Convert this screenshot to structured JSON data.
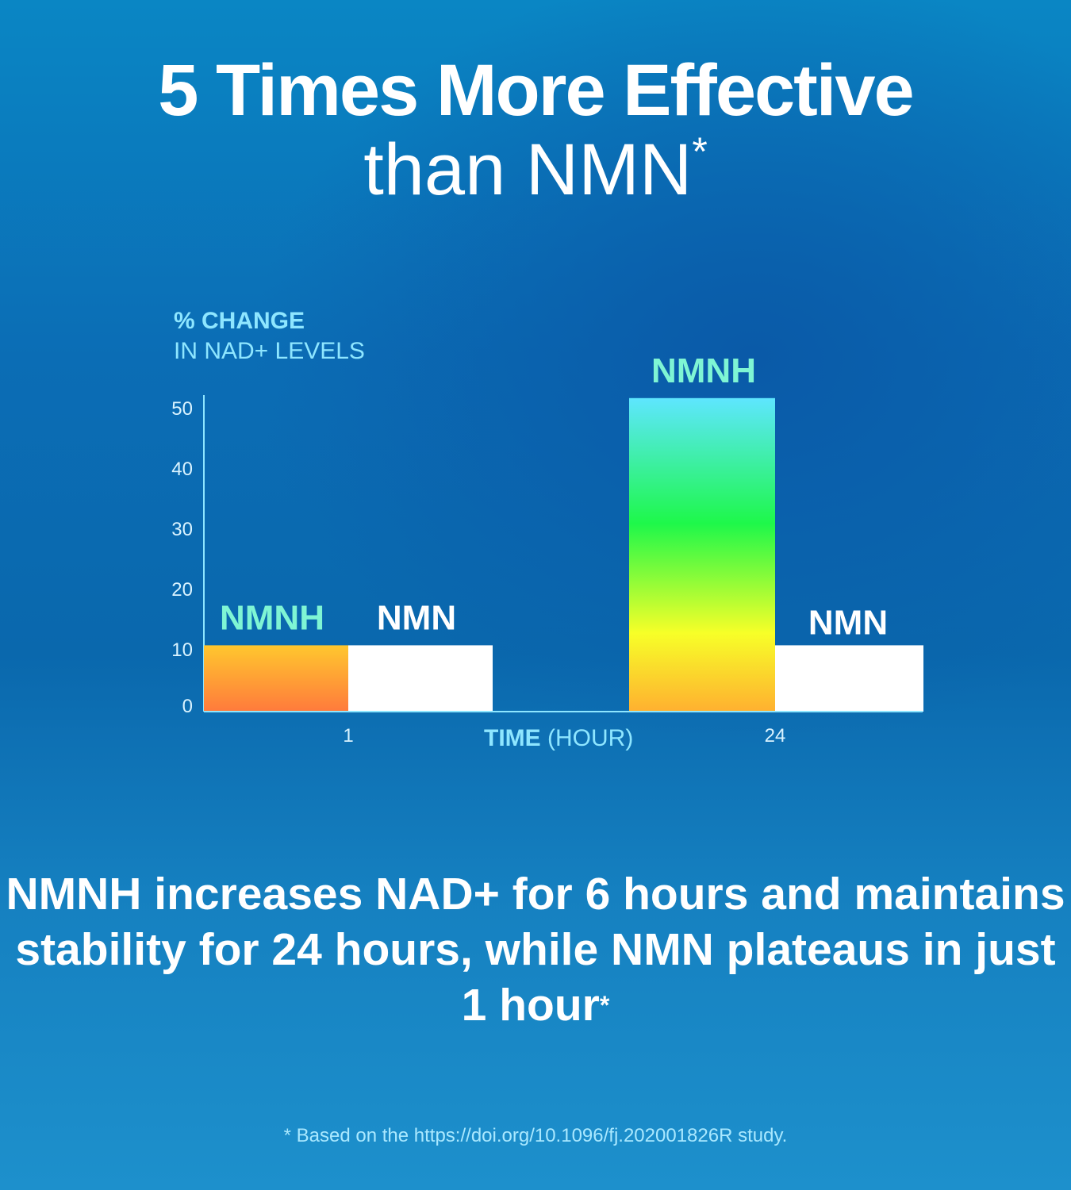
{
  "title": {
    "line1": "5 Times More Effective",
    "line2": "than NMN",
    "asterisk": "*"
  },
  "subtitle": {
    "text": "NMNH increases NAD+ for 6 hours and maintains stability for 24 hours, while NMN plateaus in just 1 hour",
    "asterisk": "*"
  },
  "footnote": "* Based on the  https://doi.org/10.1096/fj.202001826R study.",
  "colors": {
    "nmnh_label": "#7ff5d4",
    "nmn_bar": "#ffffff",
    "axis": "#8ee6ff",
    "axis_text": "#d9f3ff"
  },
  "chart_data": {
    "type": "bar",
    "ylabel_bold": "% CHANGE",
    "ylabel": "IN NAD+ LEVELS",
    "xlabel_bold": "TIME",
    "xlabel": "(HOUR)",
    "categories": [
      "1",
      "24"
    ],
    "ylim": [
      0,
      50
    ],
    "yticks": [
      "0",
      "10",
      "20",
      "30",
      "40",
      "50"
    ],
    "grid": false,
    "series": [
      {
        "name": "NMNH",
        "values": [
          11,
          52
        ],
        "colors": [
          [
            "#ff7a3c",
            "#ffc72e"
          ],
          [
            "#ffb030",
            "#f7ff28",
            "#1ef84a",
            "#5ee6ff"
          ]
        ]
      },
      {
        "name": "NMN",
        "values": [
          11,
          11
        ],
        "color": "#ffffff"
      }
    ]
  }
}
